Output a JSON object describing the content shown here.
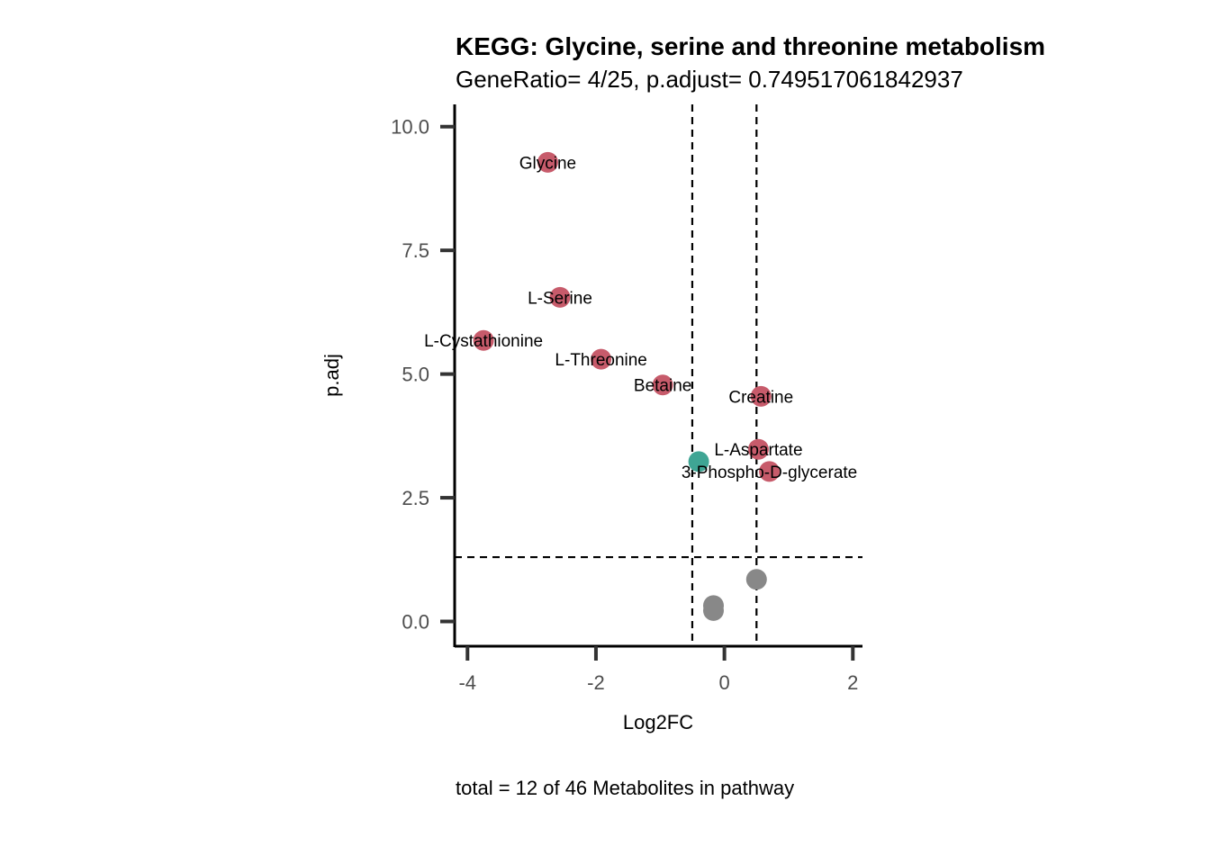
{
  "chart_data": {
    "type": "scatter",
    "title": "KEGG: Glycine, serine and threonine metabolism",
    "subtitle": "GeneRatio= 4/25, p.adjust= 0.749517061842937",
    "xlabel": "Log2FC",
    "ylabel": "p.adj",
    "caption": "total = 12 of 46 Metabolites in pathway",
    "xlim": [
      -4.2,
      2.15
    ],
    "ylim": [
      -0.5,
      10.45
    ],
    "x_ticks": [
      -4,
      -2,
      0,
      2
    ],
    "x_tick_labels": [
      "-4",
      "-2",
      "0",
      "2"
    ],
    "y_ticks": [
      0,
      2.5,
      5,
      7.5,
      10
    ],
    "y_tick_labels": [
      "0.0",
      "2.5",
      "5.0",
      "7.5",
      "10.0"
    ],
    "grid": false,
    "thresholds": {
      "log2fc": [
        -0.5,
        0.5
      ],
      "padj": 1.3
    },
    "colors": {
      "up": "#c75b6b",
      "down": "#3fa594",
      "ns": "#888888"
    },
    "points": [
      {
        "label": "Glycine",
        "x": -2.75,
        "y": 9.28,
        "group": "up"
      },
      {
        "label": "L-Serine",
        "x": -2.56,
        "y": 6.55,
        "group": "up"
      },
      {
        "label": "L-Cystathionine",
        "x": -3.75,
        "y": 5.68,
        "group": "up"
      },
      {
        "label": "L-Threonine",
        "x": -1.92,
        "y": 5.3,
        "group": "up"
      },
      {
        "label": "Betaine",
        "x": -0.96,
        "y": 4.78,
        "group": "up"
      },
      {
        "label": "Creatine",
        "x": 0.57,
        "y": 4.55,
        "group": "up"
      },
      {
        "label": "L-Aspartate",
        "x": 0.53,
        "y": 3.48,
        "group": "up"
      },
      {
        "label": "3-Phospho-D-glycerate",
        "x": 0.7,
        "y": 3.03,
        "group": "up"
      },
      {
        "label": "",
        "x": -0.4,
        "y": 3.23,
        "group": "down"
      },
      {
        "label": "",
        "x": 0.5,
        "y": 0.85,
        "group": "ns"
      },
      {
        "label": "",
        "x": -0.17,
        "y": 0.32,
        "group": "ns"
      },
      {
        "label": "",
        "x": -0.17,
        "y": 0.22,
        "group": "ns"
      }
    ]
  }
}
